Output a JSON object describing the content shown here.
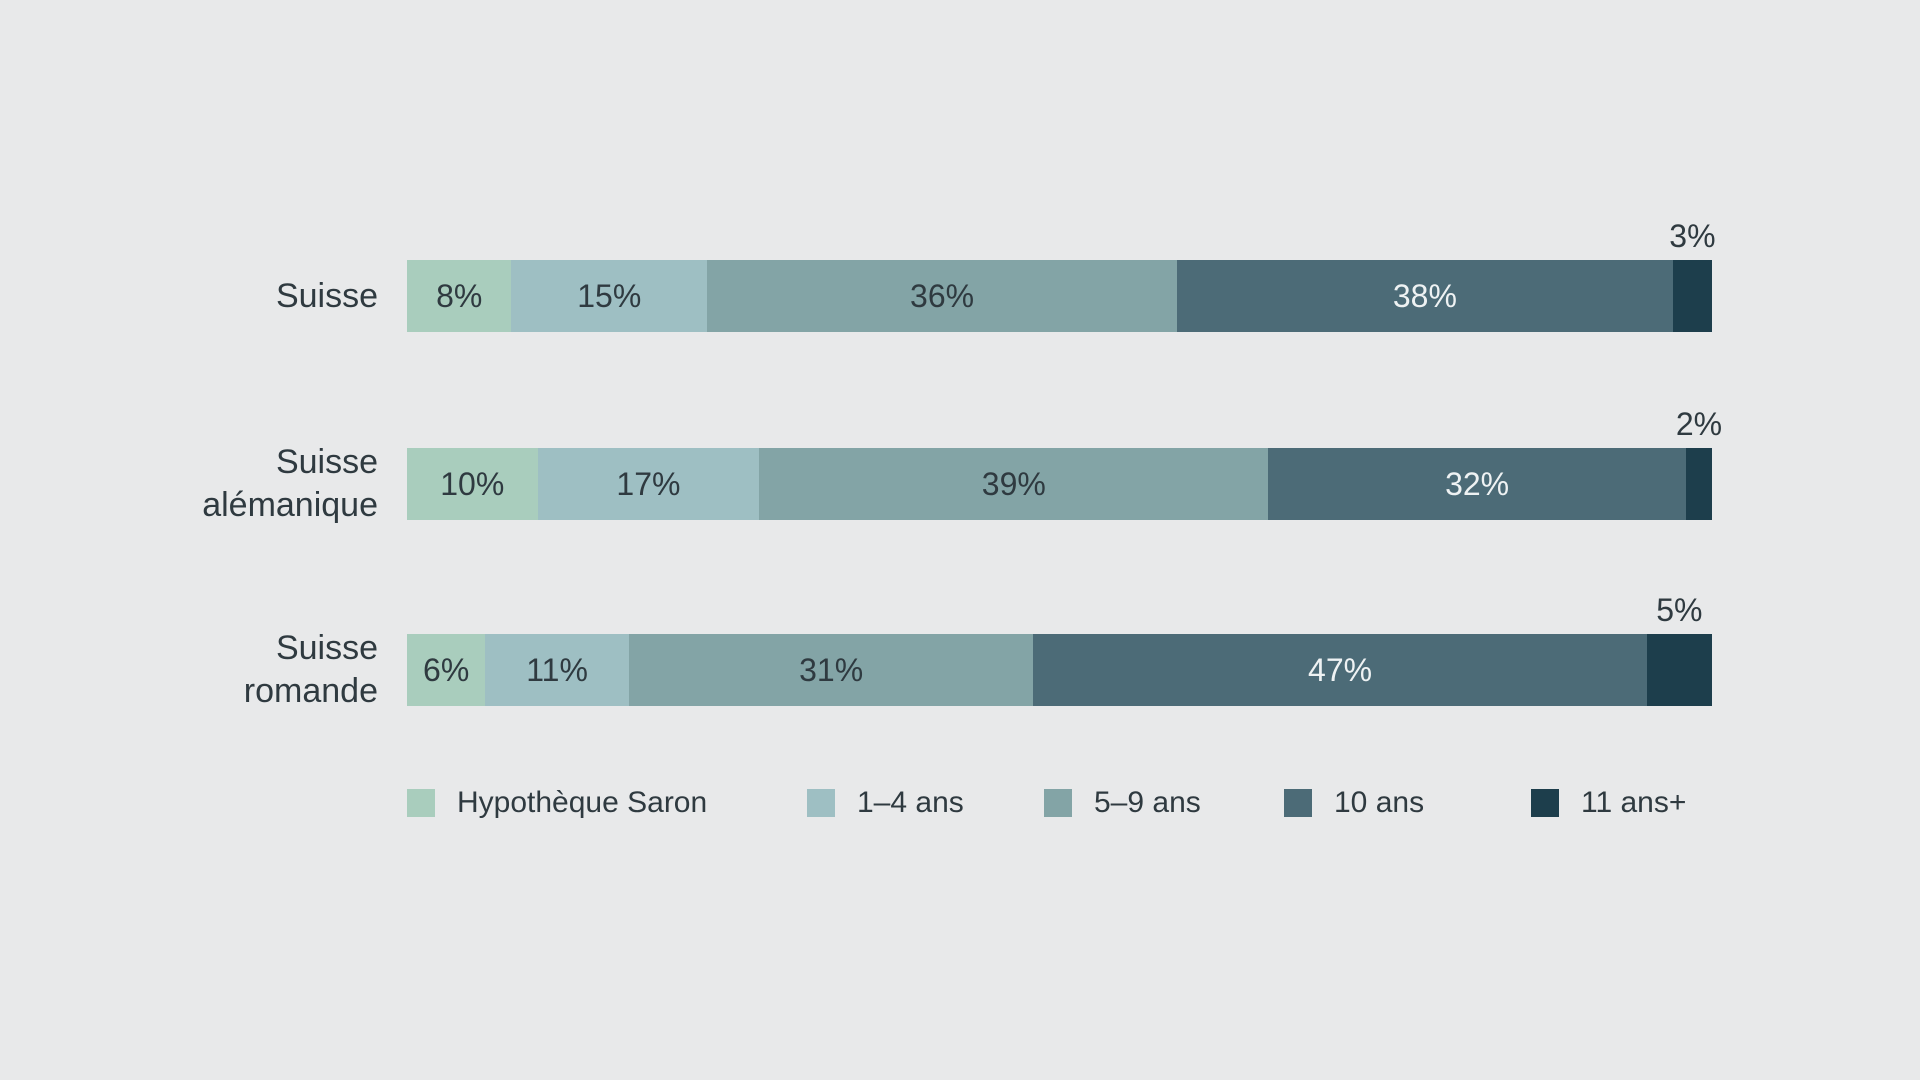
{
  "chart_data": {
    "type": "bar",
    "orientation": "horizontal",
    "stacked": true,
    "categories": [
      "Suisse",
      "Suisse\nalémanique",
      "Suisse\nromande"
    ],
    "series": [
      {
        "name": "Hypothèque Saron",
        "color": "#a9cdbd",
        "text_color": "#2f3a40",
        "values": [
          8,
          10,
          6
        ],
        "labels": [
          "8%",
          "10%",
          "6%"
        ]
      },
      {
        "name": "1–4 ans",
        "color": "#9ebfc3",
        "text_color": "#2f3a40",
        "values": [
          15,
          17,
          11
        ],
        "labels": [
          "15%",
          "17%",
          "11%"
        ]
      },
      {
        "name": "5–9 ans",
        "color": "#83a4a6",
        "text_color": "#2f3a40",
        "values": [
          36,
          39,
          31
        ],
        "labels": [
          "36%",
          "39%",
          "31%"
        ]
      },
      {
        "name": "10 ans",
        "color": "#4c6b77",
        "text_color": "#eef2f3",
        "values": [
          38,
          32,
          47
        ],
        "labels": [
          "38%",
          "32%",
          "47%"
        ]
      },
      {
        "name": "11 ans+",
        "color": "#1d3e4c",
        "text_color": "#eef2f3",
        "values": [
          3,
          2,
          5
        ],
        "labels": [
          "3%",
          "2%",
          "5%"
        ],
        "label_position": "above"
      }
    ],
    "xlim": [
      0,
      100
    ],
    "grid": false,
    "legend_position": "bottom",
    "title": "",
    "xlabel": "",
    "ylabel": ""
  }
}
